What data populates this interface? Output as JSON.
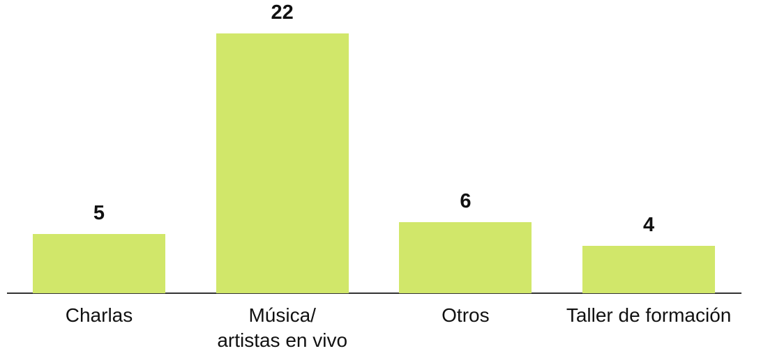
{
  "chart_data": {
    "type": "bar",
    "categories": [
      "Charlas",
      "Música/\nartistas en vivo",
      "Otros",
      "Taller de formación"
    ],
    "values": [
      5,
      22,
      6,
      4
    ],
    "color": "#d1e76a"
  }
}
